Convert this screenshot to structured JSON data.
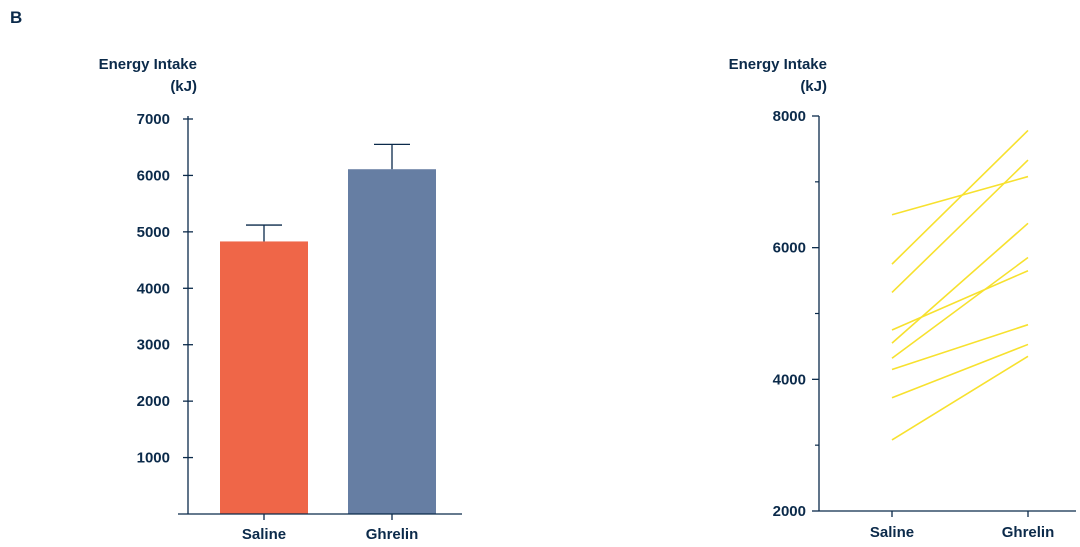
{
  "panel_label": "B",
  "chart_data": [
    {
      "type": "bar",
      "ylabel_line1": "Energy Intake",
      "ylabel_line2": "(kJ)",
      "categories": [
        "Saline",
        "Ghrelin"
      ],
      "values": [
        4830,
        6110
      ],
      "error_upper": [
        5120,
        6550
      ],
      "colors": [
        "#ef6648",
        "#667ea3"
      ],
      "ylim": [
        0,
        7000
      ],
      "yticks": [
        1000,
        2000,
        3000,
        4000,
        5000,
        6000,
        7000
      ],
      "ytick_labels": [
        "1000",
        "2000",
        "3000",
        "4000",
        "5000",
        "6000",
        "7000"
      ]
    },
    {
      "type": "line",
      "ylabel_line1": "Energy Intake",
      "ylabel_line2": "(kJ)",
      "categories": [
        "Saline",
        "Ghrelin"
      ],
      "line_color": "#f7e12e",
      "ylim": [
        2000,
        8000
      ],
      "yticks": [
        2000,
        4000,
        6000,
        8000
      ],
      "ytick_labels": [
        "2000",
        "4000",
        "6000",
        "8000"
      ],
      "minor_yticks": [
        3000,
        5000,
        7000
      ],
      "series": [
        {
          "values": [
            6500,
            7080
          ]
        },
        {
          "values": [
            5750,
            7780
          ]
        },
        {
          "values": [
            5320,
            7330
          ]
        },
        {
          "values": [
            4750,
            5650
          ]
        },
        {
          "values": [
            4550,
            6370
          ]
        },
        {
          "values": [
            4320,
            5850
          ]
        },
        {
          "values": [
            4150,
            4830
          ]
        },
        {
          "values": [
            3720,
            4530
          ]
        },
        {
          "values": [
            3080,
            4350
          ]
        }
      ]
    }
  ]
}
